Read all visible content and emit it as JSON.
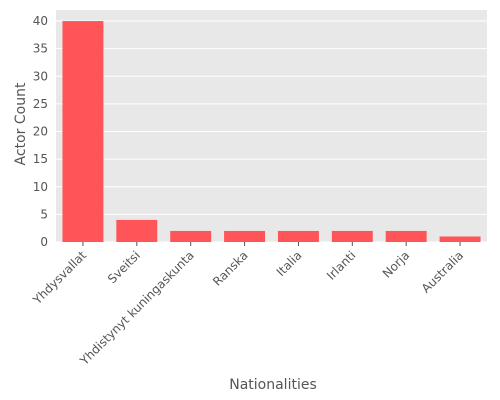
{
  "chart_data": {
    "type": "bar",
    "title": "",
    "xlabel": "Nationalities",
    "ylabel": "Actor Count",
    "categories": [
      "Yhdysvallat",
      "Sveitsi",
      "Yhdistynyt kuningaskunta",
      "Ranska",
      "Italia",
      "Irlanti",
      "Norja",
      "Australia"
    ],
    "values": [
      40,
      4,
      2,
      2,
      2,
      2,
      2,
      1
    ],
    "ylim": [
      0,
      42
    ],
    "yticks": [
      0,
      5,
      10,
      15,
      20,
      25,
      30,
      35,
      40
    ],
    "grid": true,
    "colors": {
      "bar": "#ff5558",
      "panel": "#e8e8e8",
      "grid": "#ffffff",
      "text": "#555555"
    }
  }
}
